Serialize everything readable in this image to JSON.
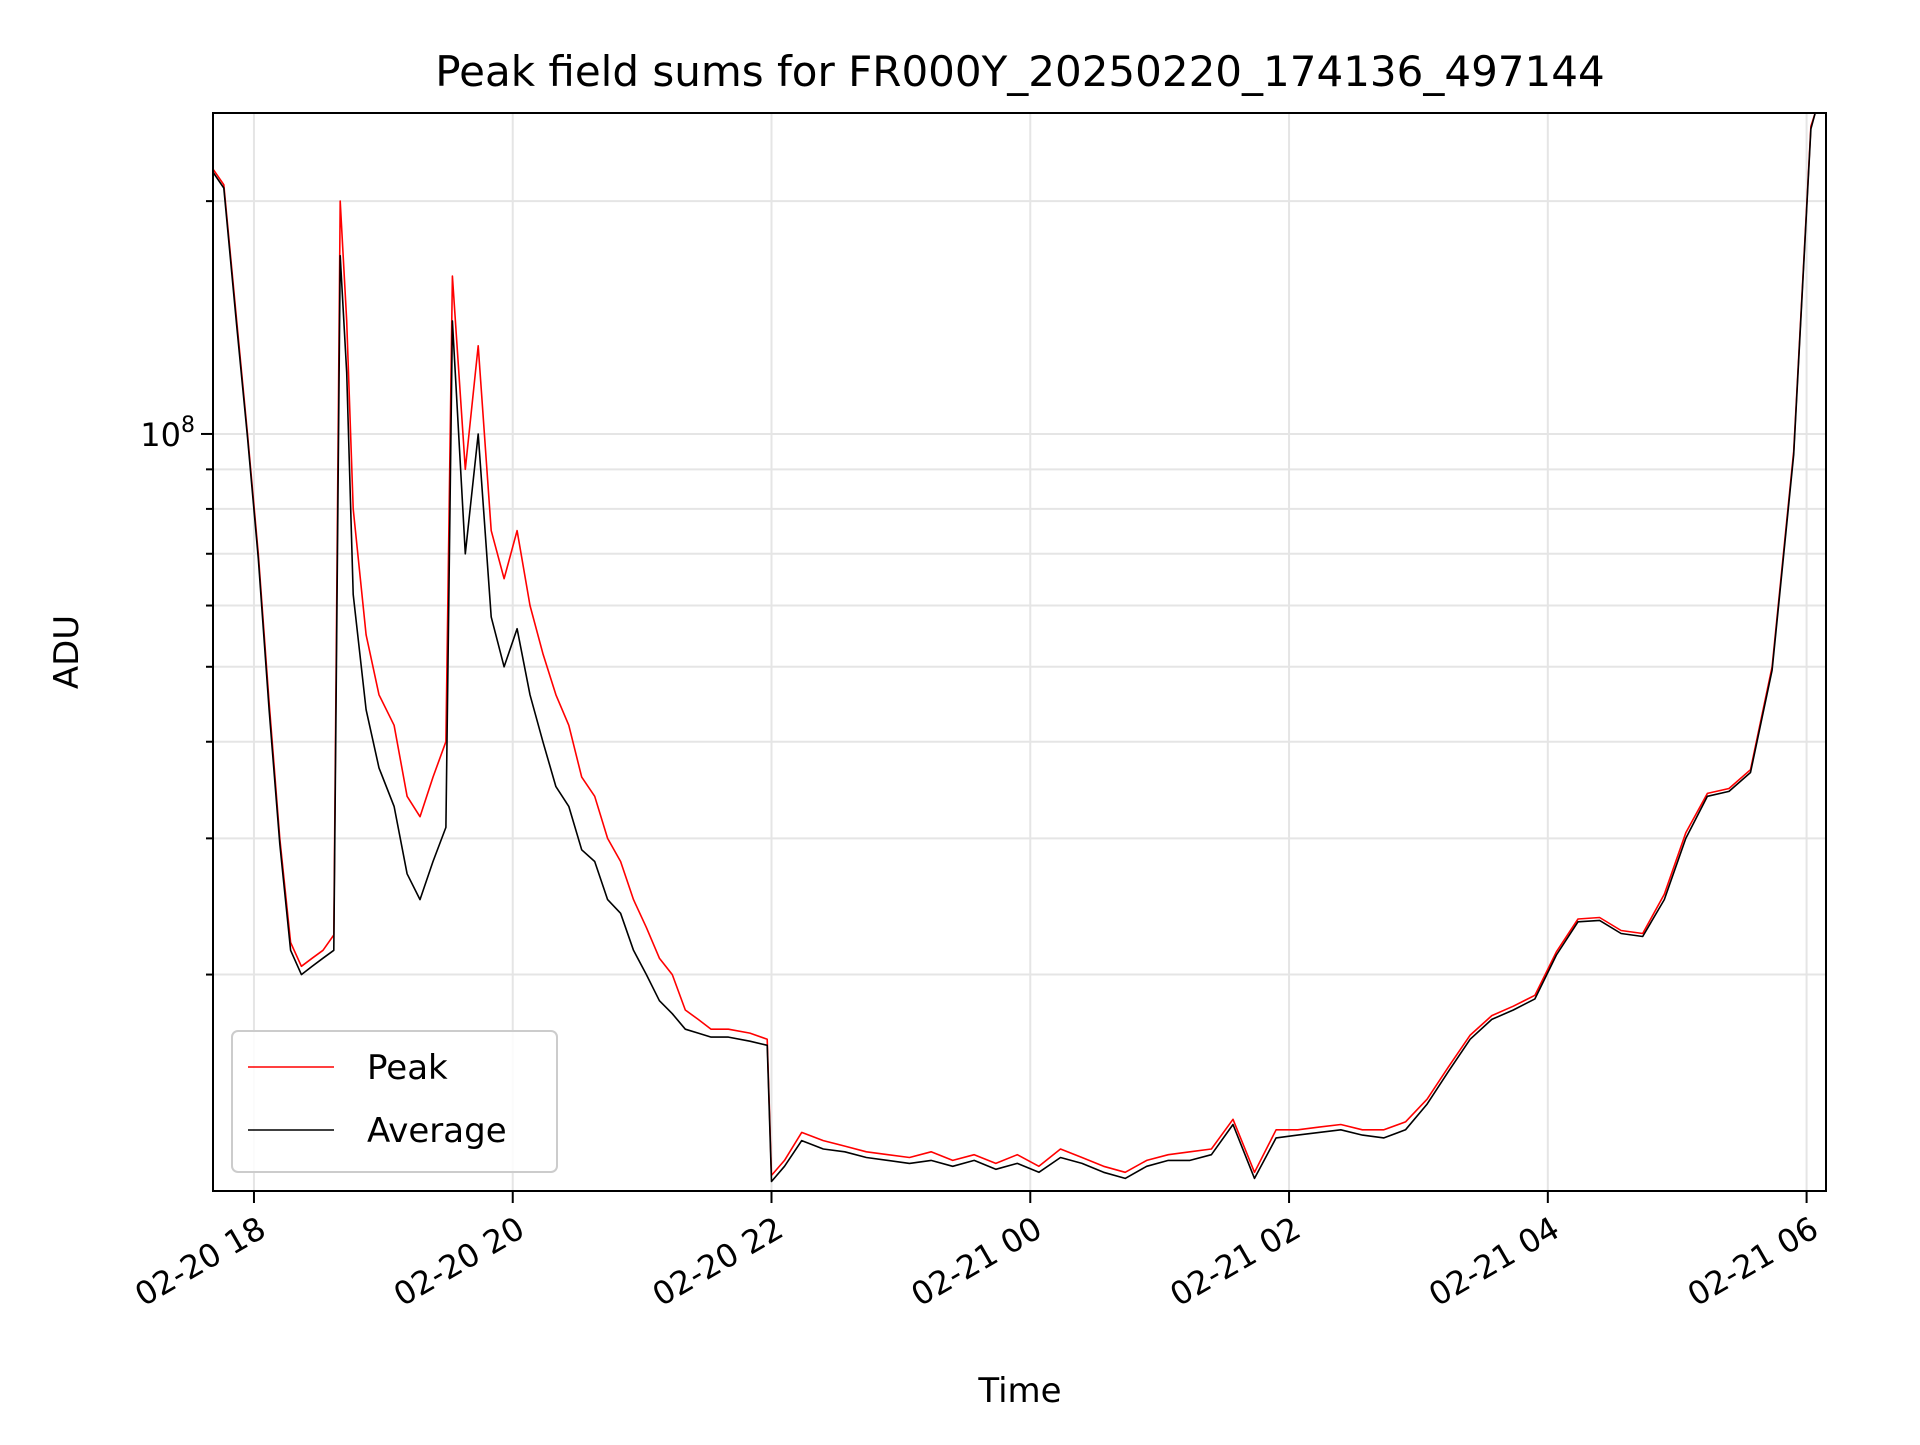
{
  "chart_data": {
    "type": "line",
    "title": "Peak field sums for FR000Y_20250220_174136_497144",
    "xlabel": "Time",
    "ylabel": "ADU",
    "y_scale": "log",
    "ylim": [
      10500000,
      260000000
    ],
    "xlim": [
      "2025-02-20 17:41",
      "2025-02-21 06:09"
    ],
    "x_ticks": [
      {
        "t": "2025-02-20 18:00",
        "label": "02-20 18"
      },
      {
        "t": "2025-02-20 20:00",
        "label": "02-20 20"
      },
      {
        "t": "2025-02-20 22:00",
        "label": "02-20 22"
      },
      {
        "t": "2025-02-21 00:00",
        "label": "02-21 00"
      },
      {
        "t": "2025-02-21 02:00",
        "label": "02-21 02"
      },
      {
        "t": "2025-02-21 04:00",
        "label": "02-21 04"
      },
      {
        "t": "2025-02-21 06:00",
        "label": "02-21 06"
      }
    ],
    "y_ticks": [
      {
        "value": 100000000,
        "base": "10",
        "exponent": "8"
      }
    ],
    "grid": true,
    "legend_position": "lower-left",
    "series": [
      {
        "name": "Peak",
        "color": "#ff0000",
        "x": [
          "2025-02-20 17:41",
          "2025-02-20 17:46",
          "2025-02-20 17:52",
          "2025-02-20 17:57",
          "2025-02-20 18:02",
          "2025-02-20 18:07",
          "2025-02-20 18:12",
          "2025-02-20 18:17",
          "2025-02-20 18:22",
          "2025-02-20 18:27",
          "2025-02-20 18:32",
          "2025-02-20 18:37",
          "2025-02-20 18:40",
          "2025-02-20 18:43",
          "2025-02-20 18:46",
          "2025-02-20 18:52",
          "2025-02-20 18:58",
          "2025-02-20 19:05",
          "2025-02-20 19:11",
          "2025-02-20 19:17",
          "2025-02-20 19:23",
          "2025-02-20 19:29",
          "2025-02-20 19:32",
          "2025-02-20 19:38",
          "2025-02-20 19:44",
          "2025-02-20 19:50",
          "2025-02-20 19:56",
          "2025-02-20 20:02",
          "2025-02-20 20:08",
          "2025-02-20 20:14",
          "2025-02-20 20:20",
          "2025-02-20 20:26",
          "2025-02-20 20:32",
          "2025-02-20 20:38",
          "2025-02-20 20:44",
          "2025-02-20 20:50",
          "2025-02-20 20:56",
          "2025-02-20 21:02",
          "2025-02-20 21:08",
          "2025-02-20 21:14",
          "2025-02-20 21:20",
          "2025-02-20 21:26",
          "2025-02-20 21:32",
          "2025-02-20 21:40",
          "2025-02-20 21:50",
          "2025-02-20 21:58",
          "2025-02-20 22:00",
          "2025-02-20 22:06",
          "2025-02-20 22:14",
          "2025-02-20 22:24",
          "2025-02-20 22:34",
          "2025-02-20 22:44",
          "2025-02-20 22:54",
          "2025-02-20 23:04",
          "2025-02-20 23:14",
          "2025-02-20 23:24",
          "2025-02-20 23:34",
          "2025-02-20 23:44",
          "2025-02-20 23:54",
          "2025-02-21 00:04",
          "2025-02-21 00:14",
          "2025-02-21 00:24",
          "2025-02-21 00:34",
          "2025-02-21 00:44",
          "2025-02-21 00:54",
          "2025-02-21 01:04",
          "2025-02-21 01:14",
          "2025-02-21 01:24",
          "2025-02-21 01:34",
          "2025-02-21 01:44",
          "2025-02-21 01:54",
          "2025-02-21 02:04",
          "2025-02-21 02:14",
          "2025-02-21 02:24",
          "2025-02-21 02:34",
          "2025-02-21 02:44",
          "2025-02-21 02:54",
          "2025-02-21 03:04",
          "2025-02-21 03:14",
          "2025-02-21 03:24",
          "2025-02-21 03:34",
          "2025-02-21 03:44",
          "2025-02-21 03:54",
          "2025-02-21 04:04",
          "2025-02-21 04:14",
          "2025-02-21 04:24",
          "2025-02-21 04:34",
          "2025-02-21 04:44",
          "2025-02-21 04:54",
          "2025-02-21 05:04",
          "2025-02-21 05:14",
          "2025-02-21 05:24",
          "2025-02-21 05:34",
          "2025-02-21 05:44",
          "2025-02-21 05:54",
          "2025-02-21 06:02",
          "2025-02-21 06:04"
        ],
        "values": [
          220000000,
          210000000,
          140000000,
          100000000,
          70000000,
          45000000,
          30000000,
          22000000,
          20500000,
          21000000,
          21500000,
          22500000,
          200000000,
          140000000,
          80000000,
          55000000,
          46000000,
          42000000,
          34000000,
          32000000,
          36000000,
          40000000,
          160000000,
          90000000,
          130000000,
          75000000,
          65000000,
          75000000,
          60000000,
          52000000,
          46000000,
          42000000,
          36000000,
          34000000,
          30000000,
          28000000,
          25000000,
          23000000,
          21000000,
          20000000,
          18000000,
          17500000,
          17000000,
          17000000,
          16800000,
          16500000,
          11000000,
          11500000,
          12500000,
          12200000,
          12000000,
          11800000,
          11700000,
          11600000,
          11800000,
          11500000,
          11700000,
          11400000,
          11700000,
          11300000,
          11900000,
          11600000,
          11300000,
          11100000,
          11500000,
          11700000,
          11800000,
          11900000,
          13000000,
          11100000,
          12600000,
          12600000,
          12700000,
          12800000,
          12600000,
          12600000,
          12900000,
          13800000,
          15200000,
          16700000,
          17700000,
          18200000,
          18800000,
          21400000,
          23600000,
          23700000,
          22800000,
          22600000,
          25400000,
          30500000,
          34300000,
          34800000,
          36800000,
          50000000,
          95000000,
          250000000,
          260000000
        ]
      },
      {
        "name": "Average",
        "color": "#000000",
        "x": [
          "2025-02-20 17:41",
          "2025-02-20 17:46",
          "2025-02-20 17:52",
          "2025-02-20 17:57",
          "2025-02-20 18:02",
          "2025-02-20 18:07",
          "2025-02-20 18:12",
          "2025-02-20 18:17",
          "2025-02-20 18:22",
          "2025-02-20 18:27",
          "2025-02-20 18:32",
          "2025-02-20 18:37",
          "2025-02-20 18:40",
          "2025-02-20 18:43",
          "2025-02-20 18:46",
          "2025-02-20 18:52",
          "2025-02-20 18:58",
          "2025-02-20 19:05",
          "2025-02-20 19:11",
          "2025-02-20 19:17",
          "2025-02-20 19:23",
          "2025-02-20 19:29",
          "2025-02-20 19:32",
          "2025-02-20 19:38",
          "2025-02-20 19:44",
          "2025-02-20 19:50",
          "2025-02-20 19:56",
          "2025-02-20 20:02",
          "2025-02-20 20:08",
          "2025-02-20 20:14",
          "2025-02-20 20:20",
          "2025-02-20 20:26",
          "2025-02-20 20:32",
          "2025-02-20 20:38",
          "2025-02-20 20:44",
          "2025-02-20 20:50",
          "2025-02-20 20:56",
          "2025-02-20 21:02",
          "2025-02-20 21:08",
          "2025-02-20 21:14",
          "2025-02-20 21:20",
          "2025-02-20 21:26",
          "2025-02-20 21:32",
          "2025-02-20 21:40",
          "2025-02-20 21:50",
          "2025-02-20 21:58",
          "2025-02-20 22:00",
          "2025-02-20 22:06",
          "2025-02-20 22:14",
          "2025-02-20 22:24",
          "2025-02-20 22:34",
          "2025-02-20 22:44",
          "2025-02-20 22:54",
          "2025-02-20 23:04",
          "2025-02-20 23:14",
          "2025-02-20 23:24",
          "2025-02-20 23:34",
          "2025-02-20 23:44",
          "2025-02-20 23:54",
          "2025-02-21 00:04",
          "2025-02-21 00:14",
          "2025-02-21 00:24",
          "2025-02-21 00:34",
          "2025-02-21 00:44",
          "2025-02-21 00:54",
          "2025-02-21 01:04",
          "2025-02-21 01:14",
          "2025-02-21 01:24",
          "2025-02-21 01:34",
          "2025-02-21 01:44",
          "2025-02-21 01:54",
          "2025-02-21 02:04",
          "2025-02-21 02:14",
          "2025-02-21 02:24",
          "2025-02-21 02:34",
          "2025-02-21 02:44",
          "2025-02-21 02:54",
          "2025-02-21 03:04",
          "2025-02-21 03:14",
          "2025-02-21 03:24",
          "2025-02-21 03:34",
          "2025-02-21 03:44",
          "2025-02-21 03:54",
          "2025-02-21 04:04",
          "2025-02-21 04:14",
          "2025-02-21 04:24",
          "2025-02-21 04:34",
          "2025-02-21 04:44",
          "2025-02-21 04:54",
          "2025-02-21 05:04",
          "2025-02-21 05:14",
          "2025-02-21 05:24",
          "2025-02-21 05:34",
          "2025-02-21 05:44",
          "2025-02-21 05:54",
          "2025-02-21 06:02",
          "2025-02-21 06:04"
        ],
        "values": [
          218000000,
          208000000,
          138000000,
          99000000,
          69000000,
          44000000,
          29500000,
          21500000,
          20000000,
          20500000,
          21000000,
          21500000,
          170000000,
          120000000,
          62000000,
          44000000,
          37000000,
          33000000,
          27000000,
          25000000,
          28000000,
          31000000,
          140000000,
          70000000,
          100000000,
          58000000,
          50000000,
          56000000,
          46000000,
          40000000,
          35000000,
          33000000,
          29000000,
          28000000,
          25000000,
          24000000,
          21500000,
          20000000,
          18500000,
          17800000,
          17000000,
          16800000,
          16600000,
          16600000,
          16400000,
          16200000,
          10800000,
          11300000,
          12200000,
          11900000,
          11800000,
          11600000,
          11500000,
          11400000,
          11500000,
          11300000,
          11500000,
          11200000,
          11400000,
          11100000,
          11600000,
          11400000,
          11100000,
          10900000,
          11300000,
          11500000,
          11500000,
          11700000,
          12800000,
          10900000,
          12300000,
          12400000,
          12500000,
          12600000,
          12400000,
          12300000,
          12600000,
          13600000,
          15000000,
          16500000,
          17500000,
          18000000,
          18600000,
          21200000,
          23400000,
          23500000,
          22600000,
          22400000,
          25000000,
          30000000,
          34000000,
          34500000,
          36500000,
          49500000,
          94000000,
          248000000,
          260000000
        ]
      }
    ]
  }
}
